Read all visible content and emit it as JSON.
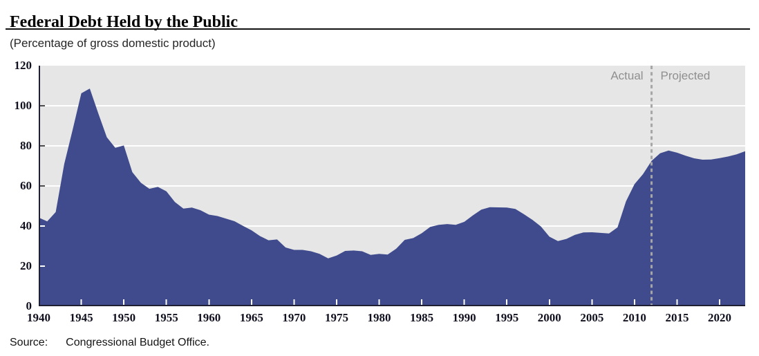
{
  "header": {
    "title": "Federal Debt Held by the Public",
    "subtitle": "(Percentage of gross domestic product)"
  },
  "plot": {
    "actual_label": "Actual",
    "projected_label": "Projected"
  },
  "footer": {
    "source_label": "Source:",
    "source_text": "Congressional Budget Office."
  },
  "colors": {
    "area": "#3f4b8c",
    "plot_bg": "#e6e6e6",
    "gridline": "#ffffff",
    "axis": "#1f1f33",
    "tick_dark": "#4d4d4d",
    "tick_light": "#ffffff",
    "divider": "#a6a6a6",
    "annotation_text": "#8f8f8f"
  },
  "chart_data": {
    "type": "area",
    "title": "Federal Debt Held by the Public",
    "subtitle": "(Percentage of gross domestic product)",
    "xlabel": "",
    "ylabel": "Percentage of gross domestic product",
    "x_range": [
      1940,
      2023
    ],
    "ylim": [
      0,
      120
    ],
    "yticks": [
      0,
      20,
      40,
      60,
      80,
      100,
      120
    ],
    "xticks": [
      1940,
      1945,
      1950,
      1955,
      1960,
      1965,
      1970,
      1975,
      1980,
      1985,
      1990,
      1995,
      2000,
      2005,
      2010,
      2015,
      2020
    ],
    "grid": "horizontal-white",
    "divider_year": 2012,
    "annotations": [
      "Actual",
      "Projected"
    ],
    "source": "Source: Congressional Budget Office.",
    "years": [
      1940,
      1941,
      1942,
      1943,
      1944,
      1945,
      1946,
      1947,
      1948,
      1949,
      1950,
      1951,
      1952,
      1953,
      1954,
      1955,
      1956,
      1957,
      1958,
      1959,
      1960,
      1961,
      1962,
      1963,
      1964,
      1965,
      1966,
      1967,
      1968,
      1969,
      1970,
      1971,
      1972,
      1973,
      1974,
      1975,
      1976,
      1977,
      1978,
      1979,
      1980,
      1981,
      1982,
      1983,
      1984,
      1985,
      1986,
      1987,
      1988,
      1989,
      1990,
      1991,
      1992,
      1993,
      1994,
      1995,
      1996,
      1997,
      1998,
      1999,
      2000,
      2001,
      2002,
      2003,
      2004,
      2005,
      2006,
      2007,
      2008,
      2009,
      2010,
      2011,
      2012,
      2013,
      2014,
      2015,
      2016,
      2017,
      2018,
      2019,
      2020,
      2021,
      2022,
      2023
    ],
    "values": [
      44.2,
      42.3,
      47.0,
      70.9,
      88.3,
      106.2,
      108.6,
      96.2,
      84.3,
      79.0,
      80.2,
      66.9,
      61.6,
      58.6,
      59.5,
      57.3,
      52.0,
      48.7,
      49.2,
      47.9,
      45.7,
      45.0,
      43.7,
      42.4,
      40.1,
      37.9,
      35.0,
      32.9,
      33.3,
      29.3,
      28.1,
      28.1,
      27.4,
      26.1,
      23.9,
      25.3,
      27.6,
      27.8,
      27.4,
      25.6,
      26.1,
      25.8,
      28.7,
      33.1,
      34.0,
      36.4,
      39.6,
      40.6,
      41.0,
      40.6,
      42.1,
      45.3,
      48.2,
      49.4,
      49.3,
      49.2,
      48.5,
      45.9,
      43.1,
      39.8,
      34.7,
      32.5,
      33.6,
      35.6,
      36.8,
      36.9,
      36.6,
      36.3,
      39.3,
      52.3,
      60.9,
      65.9,
      72.5,
      76.3,
      77.7,
      76.6,
      75.1,
      73.8,
      73.1,
      73.2,
      73.9,
      74.7,
      75.8,
      77.3
    ]
  }
}
